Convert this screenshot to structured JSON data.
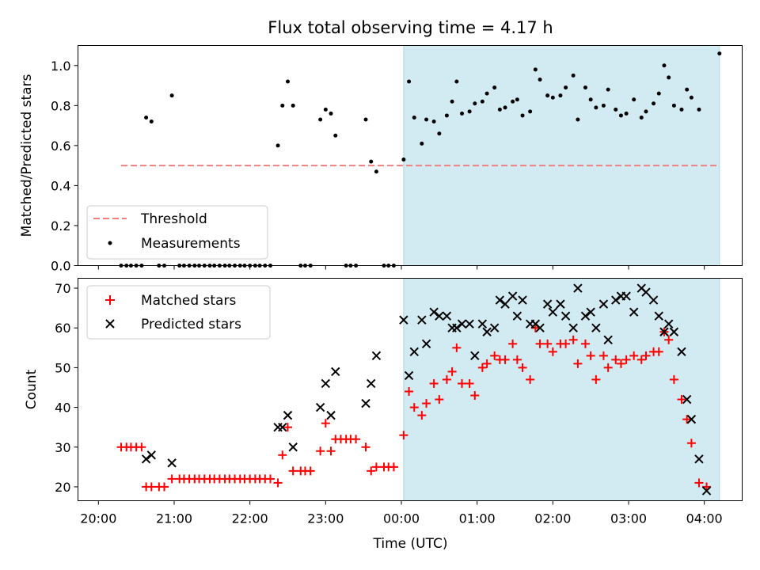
{
  "figure": {
    "title": "Flux total observing time = 4.17 h",
    "xlabel": "Time (UTC)",
    "x_tick_labels": [
      "20:00",
      "21:00",
      "22:00",
      "23:00",
      "00:00",
      "01:00",
      "02:00",
      "03:00",
      "04:00"
    ]
  },
  "colors": {
    "threshold": "#f08080",
    "shade": "#add8e6",
    "matched": "#ff0000",
    "predicted": "#000000",
    "measurement": "#000000"
  },
  "chart_data": [
    {
      "type": "scatter",
      "panel": "top",
      "ylabel": "Matched/Predicted stars",
      "xlim": [
        -0.27,
        8.5
      ],
      "ylim": [
        0,
        1.1
      ],
      "y_ticks": [
        0.0,
        0.2,
        0.4,
        0.6,
        0.8,
        1.0
      ],
      "y_tick_labels": [
        "0.0",
        "0.2",
        "0.4",
        "0.6",
        "0.8",
        "1.0"
      ],
      "x_unit": "hours since 20:00 UTC",
      "shaded_span": [
        4.03,
        8.2
      ],
      "threshold": {
        "name": "Threshold",
        "value": 0.5,
        "x_range": [
          0.3,
          8.17
        ]
      },
      "legend": {
        "position": "lower-left",
        "entries": [
          "Threshold",
          "Measurements"
        ]
      },
      "series": [
        {
          "name": "Measurements",
          "points": [
            [
              0.3,
              0
            ],
            [
              0.37,
              0
            ],
            [
              0.43,
              0
            ],
            [
              0.5,
              0
            ],
            [
              0.57,
              0
            ],
            [
              0.63,
              0.74
            ],
            [
              0.7,
              0.72
            ],
            [
              0.8,
              0
            ],
            [
              0.87,
              0
            ],
            [
              0.97,
              0.85
            ],
            [
              1.07,
              0
            ],
            [
              1.13,
              0
            ],
            [
              1.2,
              0
            ],
            [
              1.27,
              0
            ],
            [
              1.33,
              0
            ],
            [
              1.4,
              0
            ],
            [
              1.47,
              0
            ],
            [
              1.53,
              0
            ],
            [
              1.6,
              0
            ],
            [
              1.67,
              0
            ],
            [
              1.73,
              0
            ],
            [
              1.8,
              0
            ],
            [
              1.87,
              0
            ],
            [
              1.93,
              0
            ],
            [
              2.0,
              0
            ],
            [
              2.07,
              0
            ],
            [
              2.13,
              0
            ],
            [
              2.2,
              0
            ],
            [
              2.27,
              0
            ],
            [
              2.37,
              0.6
            ],
            [
              2.43,
              0.8
            ],
            [
              2.5,
              0.92
            ],
            [
              2.57,
              0.8
            ],
            [
              2.67,
              0
            ],
            [
              2.73,
              0
            ],
            [
              2.8,
              0
            ],
            [
              2.93,
              0.73
            ],
            [
              3.0,
              0.78
            ],
            [
              3.07,
              0.76
            ],
            [
              3.13,
              0.65
            ],
            [
              3.27,
              0
            ],
            [
              3.33,
              0
            ],
            [
              3.4,
              0
            ],
            [
              3.53,
              0.73
            ],
            [
              3.6,
              0.52
            ],
            [
              3.67,
              0.47
            ],
            [
              3.77,
              0
            ],
            [
              3.83,
              0
            ],
            [
              3.9,
              0
            ],
            [
              4.03,
              0.53
            ],
            [
              4.1,
              0.92
            ],
            [
              4.17,
              0.74
            ],
            [
              4.27,
              0.61
            ],
            [
              4.33,
              0.73
            ],
            [
              4.43,
              0.72
            ],
            [
              4.5,
              0.66
            ],
            [
              4.6,
              0.75
            ],
            [
              4.67,
              0.82
            ],
            [
              4.73,
              0.92
            ],
            [
              4.8,
              0.76
            ],
            [
              4.9,
              0.77
            ],
            [
              4.97,
              0.81
            ],
            [
              5.07,
              0.82
            ],
            [
              5.13,
              0.86
            ],
            [
              5.23,
              0.89
            ],
            [
              5.3,
              0.78
            ],
            [
              5.37,
              0.79
            ],
            [
              5.47,
              0.82
            ],
            [
              5.53,
              0.83
            ],
            [
              5.6,
              0.75
            ],
            [
              5.7,
              0.77
            ],
            [
              5.77,
              0.98
            ],
            [
              5.83,
              0.93
            ],
            [
              5.93,
              0.85
            ],
            [
              6.0,
              0.84
            ],
            [
              6.1,
              0.85
            ],
            [
              6.17,
              0.89
            ],
            [
              6.27,
              0.95
            ],
            [
              6.33,
              0.73
            ],
            [
              6.43,
              0.89
            ],
            [
              6.5,
              0.83
            ],
            [
              6.57,
              0.79
            ],
            [
              6.67,
              0.8
            ],
            [
              6.73,
              0.88
            ],
            [
              6.83,
              0.78
            ],
            [
              6.9,
              0.75
            ],
            [
              6.97,
              0.76
            ],
            [
              7.07,
              0.83
            ],
            [
              7.17,
              0.74
            ],
            [
              7.23,
              0.77
            ],
            [
              7.33,
              0.81
            ],
            [
              7.4,
              0.86
            ],
            [
              7.47,
              1.0
            ],
            [
              7.53,
              0.94
            ],
            [
              7.6,
              0.8
            ],
            [
              7.7,
              0.78
            ],
            [
              7.77,
              0.88
            ],
            [
              7.83,
              0.84
            ],
            [
              7.93,
              0.78
            ],
            [
              8.2,
              1.06
            ]
          ]
        }
      ]
    },
    {
      "type": "scatter",
      "panel": "bottom",
      "ylabel": "Count",
      "xlim": [
        -0.27,
        8.5
      ],
      "ylim": [
        16.5,
        72.5
      ],
      "y_ticks": [
        20,
        30,
        40,
        50,
        60,
        70
      ],
      "y_tick_labels": [
        "20",
        "30",
        "40",
        "50",
        "60",
        "70"
      ],
      "x_unit": "hours since 20:00 UTC",
      "shaded_span": [
        4.03,
        8.2
      ],
      "legend": {
        "position": "top-left",
        "entries": [
          "Matched stars",
          "Predicted stars"
        ]
      },
      "series": [
        {
          "name": "Matched stars",
          "marker": "plus",
          "points": [
            [
              0.3,
              30
            ],
            [
              0.37,
              30
            ],
            [
              0.43,
              30
            ],
            [
              0.5,
              30
            ],
            [
              0.57,
              30
            ],
            [
              0.63,
              20
            ],
            [
              0.7,
              20
            ],
            [
              0.8,
              20
            ],
            [
              0.87,
              20
            ],
            [
              0.97,
              22
            ],
            [
              1.07,
              22
            ],
            [
              1.13,
              22
            ],
            [
              1.2,
              22
            ],
            [
              1.27,
              22
            ],
            [
              1.33,
              22
            ],
            [
              1.4,
              22
            ],
            [
              1.47,
              22
            ],
            [
              1.53,
              22
            ],
            [
              1.6,
              22
            ],
            [
              1.67,
              22
            ],
            [
              1.73,
              22
            ],
            [
              1.8,
              22
            ],
            [
              1.87,
              22
            ],
            [
              1.93,
              22
            ],
            [
              2.0,
              22
            ],
            [
              2.07,
              22
            ],
            [
              2.13,
              22
            ],
            [
              2.2,
              22
            ],
            [
              2.27,
              22
            ],
            [
              2.37,
              21
            ],
            [
              2.43,
              28
            ],
            [
              2.5,
              35
            ],
            [
              2.57,
              24
            ],
            [
              2.67,
              24
            ],
            [
              2.73,
              24
            ],
            [
              2.8,
              24
            ],
            [
              2.93,
              29
            ],
            [
              3.0,
              36
            ],
            [
              3.07,
              29
            ],
            [
              3.13,
              32
            ],
            [
              3.2,
              32
            ],
            [
              3.27,
              32
            ],
            [
              3.33,
              32
            ],
            [
              3.4,
              32
            ],
            [
              3.53,
              30
            ],
            [
              3.6,
              24
            ],
            [
              3.67,
              25
            ],
            [
              3.77,
              25
            ],
            [
              3.83,
              25
            ],
            [
              3.9,
              25
            ],
            [
              4.03,
              33
            ],
            [
              4.1,
              44
            ],
            [
              4.17,
              40
            ],
            [
              4.27,
              38
            ],
            [
              4.33,
              41
            ],
            [
              4.43,
              46
            ],
            [
              4.5,
              42
            ],
            [
              4.6,
              47
            ],
            [
              4.67,
              49
            ],
            [
              4.73,
              55
            ],
            [
              4.8,
              46
            ],
            [
              4.9,
              46
            ],
            [
              4.97,
              43
            ],
            [
              5.07,
              50
            ],
            [
              5.13,
              51
            ],
            [
              5.23,
              53
            ],
            [
              5.3,
              52
            ],
            [
              5.37,
              52
            ],
            [
              5.47,
              56
            ],
            [
              5.53,
              52
            ],
            [
              5.6,
              50
            ],
            [
              5.7,
              47
            ],
            [
              5.77,
              60
            ],
            [
              5.83,
              56
            ],
            [
              5.93,
              56
            ],
            [
              6.0,
              54
            ],
            [
              6.1,
              56
            ],
            [
              6.17,
              56
            ],
            [
              6.27,
              57
            ],
            [
              6.33,
              51
            ],
            [
              6.43,
              56
            ],
            [
              6.5,
              53
            ],
            [
              6.57,
              47
            ],
            [
              6.67,
              53
            ],
            [
              6.73,
              50
            ],
            [
              6.83,
              52
            ],
            [
              6.9,
              51
            ],
            [
              6.97,
              52
            ],
            [
              7.07,
              53
            ],
            [
              7.17,
              52
            ],
            [
              7.23,
              53
            ],
            [
              7.33,
              54
            ],
            [
              7.4,
              54
            ],
            [
              7.47,
              59
            ],
            [
              7.53,
              57
            ],
            [
              7.6,
              47
            ],
            [
              7.7,
              42
            ],
            [
              7.77,
              37
            ],
            [
              7.83,
              31
            ],
            [
              7.93,
              21
            ],
            [
              8.03,
              20
            ]
          ]
        },
        {
          "name": "Predicted stars",
          "marker": "x",
          "points": [
            [
              0.63,
              27
            ],
            [
              0.7,
              28
            ],
            [
              0.97,
              26
            ],
            [
              2.37,
              35
            ],
            [
              2.43,
              35
            ],
            [
              2.5,
              38
            ],
            [
              2.57,
              30
            ],
            [
              2.93,
              40
            ],
            [
              3.0,
              46
            ],
            [
              3.07,
              38
            ],
            [
              3.13,
              49
            ],
            [
              3.53,
              41
            ],
            [
              3.6,
              46
            ],
            [
              3.67,
              53
            ],
            [
              4.03,
              62
            ],
            [
              4.1,
              48
            ],
            [
              4.17,
              54
            ],
            [
              4.27,
              62
            ],
            [
              4.33,
              56
            ],
            [
              4.43,
              64
            ],
            [
              4.5,
              63
            ],
            [
              4.6,
              63
            ],
            [
              4.67,
              60
            ],
            [
              4.73,
              60
            ],
            [
              4.8,
              61
            ],
            [
              4.9,
              61
            ],
            [
              4.97,
              53
            ],
            [
              5.07,
              61
            ],
            [
              5.13,
              59
            ],
            [
              5.23,
              60
            ],
            [
              5.3,
              67
            ],
            [
              5.37,
              66
            ],
            [
              5.47,
              68
            ],
            [
              5.53,
              63
            ],
            [
              5.6,
              67
            ],
            [
              5.7,
              61
            ],
            [
              5.77,
              61
            ],
            [
              5.83,
              60
            ],
            [
              5.93,
              66
            ],
            [
              6.0,
              64
            ],
            [
              6.1,
              66
            ],
            [
              6.17,
              63
            ],
            [
              6.27,
              60
            ],
            [
              6.33,
              70
            ],
            [
              6.43,
              63
            ],
            [
              6.5,
              64
            ],
            [
              6.57,
              60
            ],
            [
              6.67,
              66
            ],
            [
              6.73,
              57
            ],
            [
              6.83,
              67
            ],
            [
              6.9,
              68
            ],
            [
              6.97,
              68
            ],
            [
              7.07,
              64
            ],
            [
              7.17,
              70
            ],
            [
              7.23,
              69
            ],
            [
              7.33,
              67
            ],
            [
              7.4,
              63
            ],
            [
              7.47,
              59
            ],
            [
              7.53,
              61
            ],
            [
              7.6,
              59
            ],
            [
              7.7,
              54
            ],
            [
              7.77,
              42
            ],
            [
              7.83,
              37
            ],
            [
              7.93,
              27
            ],
            [
              8.03,
              19
            ]
          ]
        }
      ]
    }
  ]
}
